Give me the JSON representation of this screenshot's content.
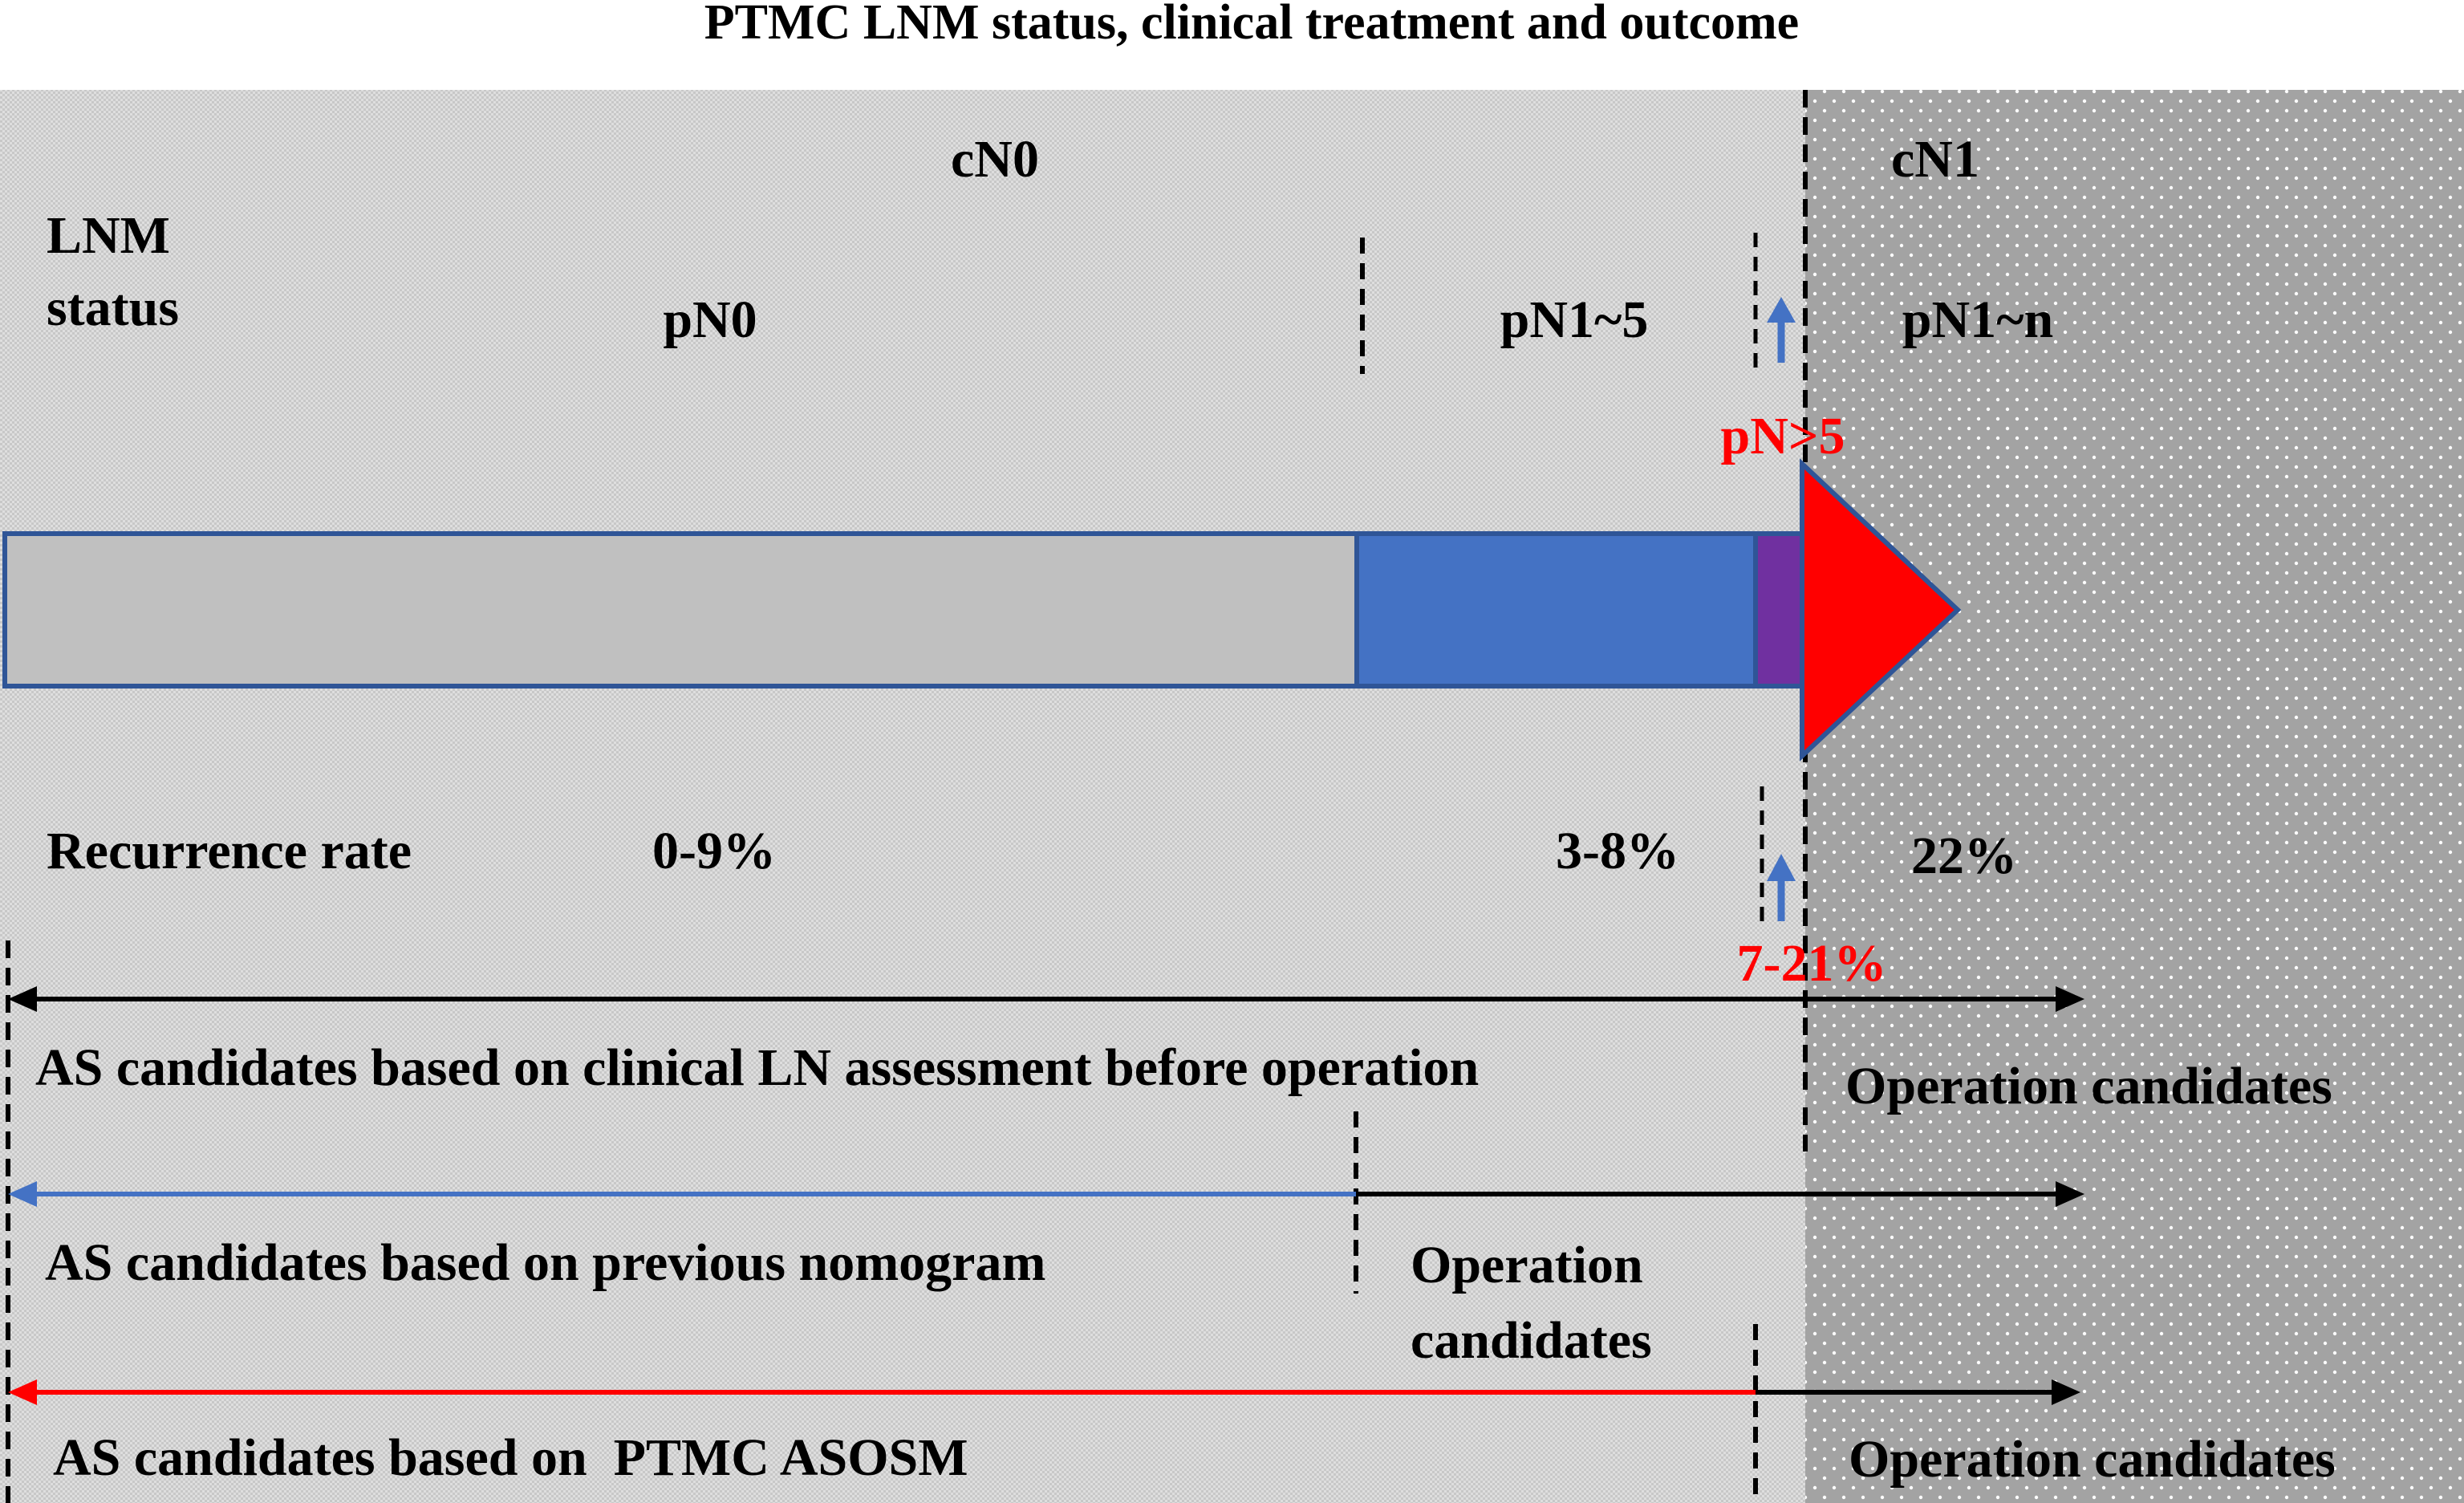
{
  "title": "PTMC LNM status, clinical treatment and outcome",
  "regions": {
    "cn0_label": "cN0",
    "cn1_label": "cN1"
  },
  "lnm_status": {
    "label_line1": "LNM",
    "label_line2": "status",
    "pn0": "pN0",
    "pn1_5": "pN1~5",
    "pn_gt5": "pN>5",
    "pn1_n": "pN1~n"
  },
  "recurrence": {
    "label": "Recurrence rate",
    "pn0_rate": "0-9%",
    "pn1_5_rate": "3-8%",
    "pn_gt5_rate": "7-21%",
    "cn1_rate": "22%"
  },
  "rows": [
    {
      "as_label": "AS candidates based on clinical LN assessment before operation",
      "op_label": "Operation candidates",
      "arrow_color": "#000000"
    },
    {
      "as_label": "AS candidates based on previous nomogram",
      "op_label_line1": "Operation",
      "op_label_line2": "candidates",
      "arrow_color": "#4472c4"
    },
    {
      "as_label": "AS candidates based on  PTMC ASOSM",
      "op_label": "Operation candidates",
      "arrow_color": "#ff0000"
    }
  ],
  "colors": {
    "pn0_bar": "#c0c0c0",
    "pn1_5_bar": "#4472c4",
    "pn_gt5_bar": "#7030a0",
    "cn1_arrow": "#ff0000",
    "bar_outline": "#2f5597",
    "small_arrow": "#4472c4",
    "cn0_bg": "#d9d9d9",
    "cn1_bg": "#a6a6a6"
  }
}
